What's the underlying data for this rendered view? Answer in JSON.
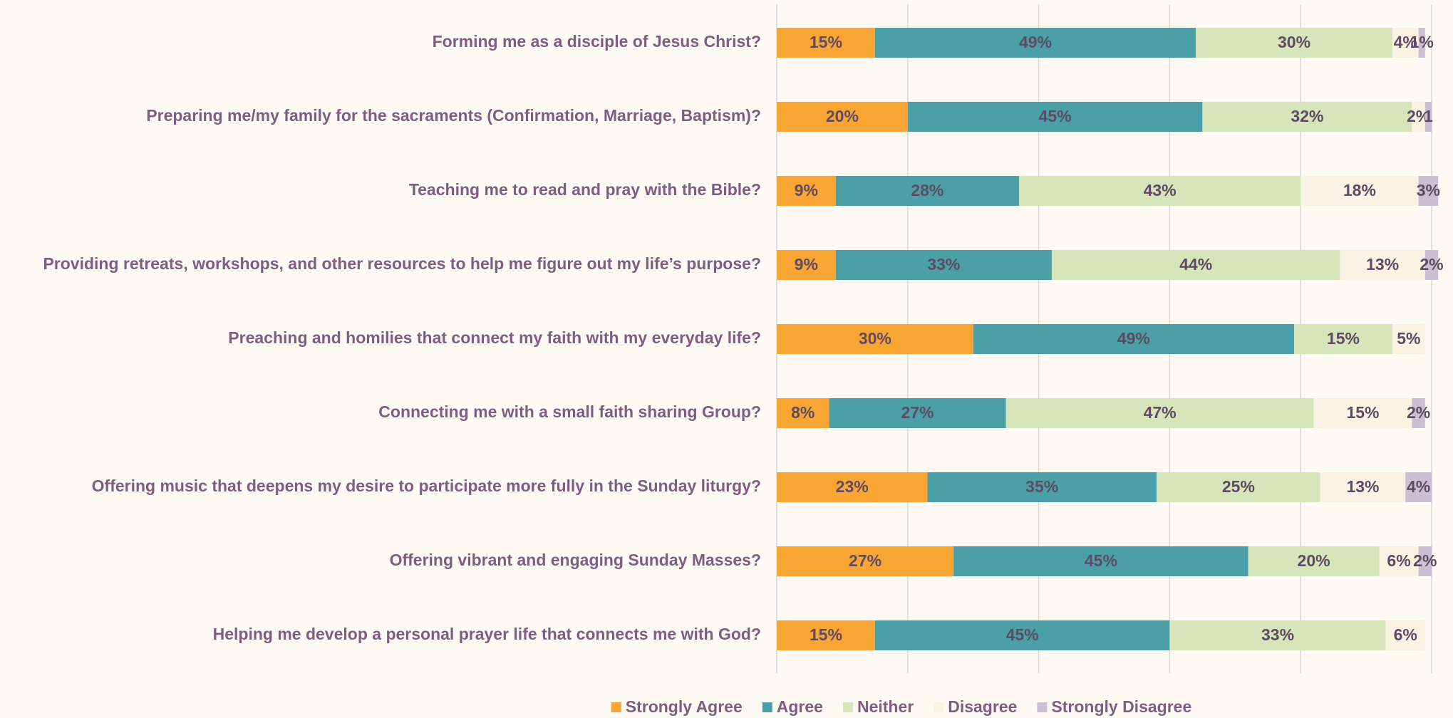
{
  "chart_data": {
    "type": "stacked_bar_horizontal",
    "categories": [
      "Forming me as a disciple of Jesus Christ?",
      "Preparing me/my family for the sacraments (Confirmation, Marriage, Baptism)?",
      "Teaching me to read and pray with the Bible?",
      "Providing retreats, workshops, and other resources to help me figure out my life’s purpose?",
      "Preaching and homilies that connect my faith with my everyday life?",
      "Connecting me with a small faith sharing Group?",
      "Offering music that deepens my desire to participate more fully in the Sunday liturgy?",
      "Offering vibrant and engaging Sunday Masses?",
      "Helping me develop a personal prayer life that connects me with God?"
    ],
    "series": [
      {
        "name": "Strongly Agree",
        "color": "#f9a533",
        "values": [
          15,
          20,
          9,
          9,
          30,
          8,
          23,
          27,
          15
        ],
        "value_labels": [
          "15%",
          "20%",
          "9%",
          "9%",
          "30%",
          "8%",
          "23%",
          "27%",
          "15%"
        ]
      },
      {
        "name": "Agree",
        "color": "#4ba0a8",
        "values": [
          49,
          45,
          28,
          33,
          49,
          27,
          35,
          45,
          45
        ],
        "value_labels": [
          "49%",
          "45%",
          "28%",
          "33%",
          "49%",
          "27%",
          "35%",
          "45%",
          "45%"
        ]
      },
      {
        "name": "Neither",
        "color": "#d6e6ba",
        "values": [
          30,
          32,
          43,
          44,
          15,
          47,
          25,
          20,
          33
        ],
        "value_labels": [
          "30%",
          "32%",
          "43%",
          "44%",
          "15%",
          "47%",
          "25%",
          "20%",
          "33%"
        ]
      },
      {
        "name": "Disagree",
        "color": "#faf3e3",
        "values": [
          4,
          2,
          18,
          13,
          5,
          15,
          13,
          6,
          6
        ],
        "value_labels": [
          "4%",
          "2%",
          "18%",
          "13%",
          "5%",
          "15%",
          "13%",
          "6%",
          "6%"
        ]
      },
      {
        "name": "Strongly Disagree",
        "color": "#cbbfd4",
        "values": [
          1,
          1,
          3,
          2,
          null,
          2,
          4,
          2,
          null
        ],
        "value_labels": [
          "1%",
          "1",
          "3%",
          "2%",
          null,
          "2%",
          "4%",
          "2%",
          null
        ]
      }
    ],
    "xlim": [
      0,
      100
    ],
    "xticks": [
      0,
      20,
      40,
      60,
      80,
      100
    ],
    "grid": true,
    "legend": "bottom"
  }
}
